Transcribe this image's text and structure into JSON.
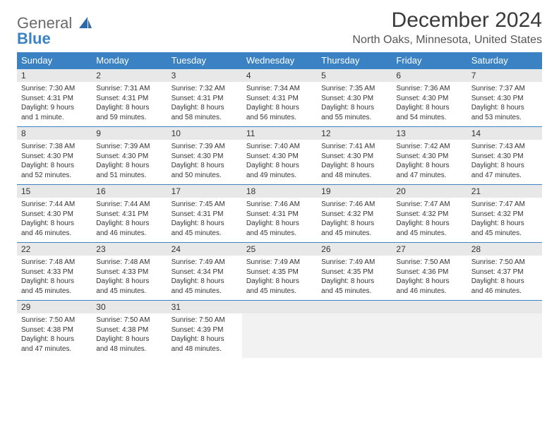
{
  "logo": {
    "general": "General",
    "blue": "Blue"
  },
  "title": "December 2024",
  "location": "North Oaks, Minnesota, United States",
  "colors": {
    "header_bg": "#3b82c4",
    "header_text": "#ffffff",
    "daynum_bg": "#e8e8e8",
    "cell_border": "#3b82c4",
    "text": "#333333",
    "logo_gray": "#6b6b6b",
    "logo_blue": "#3b82c4"
  },
  "dayNames": [
    "Sunday",
    "Monday",
    "Tuesday",
    "Wednesday",
    "Thursday",
    "Friday",
    "Saturday"
  ],
  "weeks": [
    [
      {
        "n": "1",
        "sr": "Sunrise: 7:30 AM",
        "ss": "Sunset: 4:31 PM",
        "dl": "Daylight: 9 hours and 1 minute."
      },
      {
        "n": "2",
        "sr": "Sunrise: 7:31 AM",
        "ss": "Sunset: 4:31 PM",
        "dl": "Daylight: 8 hours and 59 minutes."
      },
      {
        "n": "3",
        "sr": "Sunrise: 7:32 AM",
        "ss": "Sunset: 4:31 PM",
        "dl": "Daylight: 8 hours and 58 minutes."
      },
      {
        "n": "4",
        "sr": "Sunrise: 7:34 AM",
        "ss": "Sunset: 4:31 PM",
        "dl": "Daylight: 8 hours and 56 minutes."
      },
      {
        "n": "5",
        "sr": "Sunrise: 7:35 AM",
        "ss": "Sunset: 4:30 PM",
        "dl": "Daylight: 8 hours and 55 minutes."
      },
      {
        "n": "6",
        "sr": "Sunrise: 7:36 AM",
        "ss": "Sunset: 4:30 PM",
        "dl": "Daylight: 8 hours and 54 minutes."
      },
      {
        "n": "7",
        "sr": "Sunrise: 7:37 AM",
        "ss": "Sunset: 4:30 PM",
        "dl": "Daylight: 8 hours and 53 minutes."
      }
    ],
    [
      {
        "n": "8",
        "sr": "Sunrise: 7:38 AM",
        "ss": "Sunset: 4:30 PM",
        "dl": "Daylight: 8 hours and 52 minutes."
      },
      {
        "n": "9",
        "sr": "Sunrise: 7:39 AM",
        "ss": "Sunset: 4:30 PM",
        "dl": "Daylight: 8 hours and 51 minutes."
      },
      {
        "n": "10",
        "sr": "Sunrise: 7:39 AM",
        "ss": "Sunset: 4:30 PM",
        "dl": "Daylight: 8 hours and 50 minutes."
      },
      {
        "n": "11",
        "sr": "Sunrise: 7:40 AM",
        "ss": "Sunset: 4:30 PM",
        "dl": "Daylight: 8 hours and 49 minutes."
      },
      {
        "n": "12",
        "sr": "Sunrise: 7:41 AM",
        "ss": "Sunset: 4:30 PM",
        "dl": "Daylight: 8 hours and 48 minutes."
      },
      {
        "n": "13",
        "sr": "Sunrise: 7:42 AM",
        "ss": "Sunset: 4:30 PM",
        "dl": "Daylight: 8 hours and 47 minutes."
      },
      {
        "n": "14",
        "sr": "Sunrise: 7:43 AM",
        "ss": "Sunset: 4:30 PM",
        "dl": "Daylight: 8 hours and 47 minutes."
      }
    ],
    [
      {
        "n": "15",
        "sr": "Sunrise: 7:44 AM",
        "ss": "Sunset: 4:30 PM",
        "dl": "Daylight: 8 hours and 46 minutes."
      },
      {
        "n": "16",
        "sr": "Sunrise: 7:44 AM",
        "ss": "Sunset: 4:31 PM",
        "dl": "Daylight: 8 hours and 46 minutes."
      },
      {
        "n": "17",
        "sr": "Sunrise: 7:45 AM",
        "ss": "Sunset: 4:31 PM",
        "dl": "Daylight: 8 hours and 45 minutes."
      },
      {
        "n": "18",
        "sr": "Sunrise: 7:46 AM",
        "ss": "Sunset: 4:31 PM",
        "dl": "Daylight: 8 hours and 45 minutes."
      },
      {
        "n": "19",
        "sr": "Sunrise: 7:46 AM",
        "ss": "Sunset: 4:32 PM",
        "dl": "Daylight: 8 hours and 45 minutes."
      },
      {
        "n": "20",
        "sr": "Sunrise: 7:47 AM",
        "ss": "Sunset: 4:32 PM",
        "dl": "Daylight: 8 hours and 45 minutes."
      },
      {
        "n": "21",
        "sr": "Sunrise: 7:47 AM",
        "ss": "Sunset: 4:32 PM",
        "dl": "Daylight: 8 hours and 45 minutes."
      }
    ],
    [
      {
        "n": "22",
        "sr": "Sunrise: 7:48 AM",
        "ss": "Sunset: 4:33 PM",
        "dl": "Daylight: 8 hours and 45 minutes."
      },
      {
        "n": "23",
        "sr": "Sunrise: 7:48 AM",
        "ss": "Sunset: 4:33 PM",
        "dl": "Daylight: 8 hours and 45 minutes."
      },
      {
        "n": "24",
        "sr": "Sunrise: 7:49 AM",
        "ss": "Sunset: 4:34 PM",
        "dl": "Daylight: 8 hours and 45 minutes."
      },
      {
        "n": "25",
        "sr": "Sunrise: 7:49 AM",
        "ss": "Sunset: 4:35 PM",
        "dl": "Daylight: 8 hours and 45 minutes."
      },
      {
        "n": "26",
        "sr": "Sunrise: 7:49 AM",
        "ss": "Sunset: 4:35 PM",
        "dl": "Daylight: 8 hours and 45 minutes."
      },
      {
        "n": "27",
        "sr": "Sunrise: 7:50 AM",
        "ss": "Sunset: 4:36 PM",
        "dl": "Daylight: 8 hours and 46 minutes."
      },
      {
        "n": "28",
        "sr": "Sunrise: 7:50 AM",
        "ss": "Sunset: 4:37 PM",
        "dl": "Daylight: 8 hours and 46 minutes."
      }
    ],
    [
      {
        "n": "29",
        "sr": "Sunrise: 7:50 AM",
        "ss": "Sunset: 4:38 PM",
        "dl": "Daylight: 8 hours and 47 minutes."
      },
      {
        "n": "30",
        "sr": "Sunrise: 7:50 AM",
        "ss": "Sunset: 4:38 PM",
        "dl": "Daylight: 8 hours and 48 minutes."
      },
      {
        "n": "31",
        "sr": "Sunrise: 7:50 AM",
        "ss": "Sunset: 4:39 PM",
        "dl": "Daylight: 8 hours and 48 minutes."
      },
      {
        "empty": true
      },
      {
        "empty": true
      },
      {
        "empty": true
      },
      {
        "empty": true
      }
    ]
  ]
}
